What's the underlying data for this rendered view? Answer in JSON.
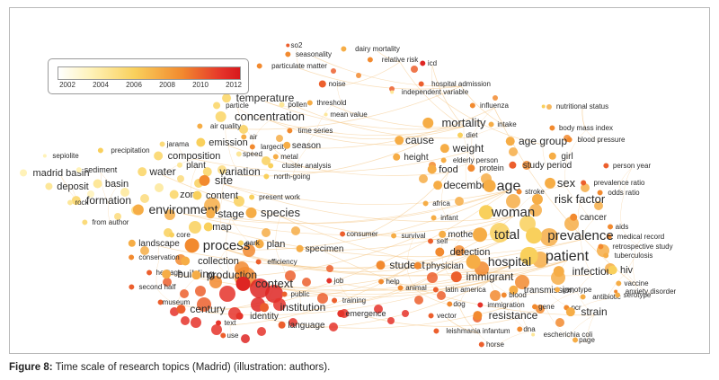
{
  "caption": {
    "label": "Figure 8:",
    "text": "Time scale of research topics (Madrid) (illustration: authors)."
  },
  "legend": {
    "ticks": [
      "2002",
      "2004",
      "2006",
      "2008",
      "2010",
      "2012"
    ],
    "value_range": [
      2001,
      2013
    ]
  },
  "colors": {
    "edge": "#f4c27d",
    "scale": [
      "#ffffff",
      "#fff2b8",
      "#f9d05c",
      "#f28a2f",
      "#e5332a",
      "#d7191c"
    ]
  },
  "nodes": [
    {
      "label": "so2",
      "year": 2010
    },
    {
      "label": "seasonality",
      "year": 2009
    },
    {
      "label": "particulate matter",
      "year": 2009
    },
    {
      "label": "noise",
      "year": 2010
    },
    {
      "label": "dairy mortality",
      "year": 2008
    },
    {
      "label": "relative risk",
      "year": 2009
    },
    {
      "label": "icd",
      "year": 2012
    },
    {
      "label": "hospital admission",
      "year": 2010
    },
    {
      "label": "independent variable",
      "year": 2005
    },
    {
      "label": "influenza",
      "year": 2009
    },
    {
      "label": "nutritional status",
      "year": 2007
    },
    {
      "label": "temperature",
      "year": 2006
    },
    {
      "label": "particle",
      "year": 2006
    },
    {
      "label": "pollen",
      "year": 2005
    },
    {
      "label": "threshold",
      "year": 2008
    },
    {
      "label": "mean value",
      "year": 2005
    },
    {
      "label": "concentration",
      "year": 2006
    },
    {
      "label": "air quality",
      "year": 2008
    },
    {
      "label": "time series",
      "year": 2009
    },
    {
      "label": "emission",
      "year": 2007
    },
    {
      "label": "air",
      "year": 2008
    },
    {
      "label": "largecity",
      "year": 2009
    },
    {
      "label": "season",
      "year": 2008
    },
    {
      "label": "jarama",
      "year": 2006
    },
    {
      "label": "speed",
      "year": 2005
    },
    {
      "label": "metal",
      "year": 2008
    },
    {
      "label": "composition",
      "year": 2006
    },
    {
      "label": "cluster analysis",
      "year": 2007
    },
    {
      "label": "north-going",
      "year": 2007
    },
    {
      "label": "plant",
      "year": 2005
    },
    {
      "label": "precipitation",
      "year": 2007
    },
    {
      "label": "sepiolite",
      "year": 2004
    },
    {
      "label": "water",
      "year": 2006
    },
    {
      "label": "variation",
      "year": 2006
    },
    {
      "label": "madrid basin",
      "year": 2004
    },
    {
      "label": "sediment",
      "year": 2004
    },
    {
      "label": "deposit",
      "year": 2005
    },
    {
      "label": "basin",
      "year": 2005
    },
    {
      "label": "site",
      "year": 2009
    },
    {
      "label": "formation",
      "year": 2006
    },
    {
      "label": "rock",
      "year": 2005
    },
    {
      "label": "zone",
      "year": 2006
    },
    {
      "label": "content",
      "year": 2007
    },
    {
      "label": "present work",
      "year": 2007
    },
    {
      "label": "environment",
      "year": 2008
    },
    {
      "label": "stage",
      "year": 2008
    },
    {
      "label": "species",
      "year": 2008
    },
    {
      "label": "from author",
      "year": 2006
    },
    {
      "label": "map",
      "year": 2007
    },
    {
      "label": "core",
      "year": 2007
    },
    {
      "label": "landscape",
      "year": 2008
    },
    {
      "label": "process",
      "year": 2009
    },
    {
      "label": "plan",
      "year": 2008
    },
    {
      "label": "park",
      "year": 2007
    },
    {
      "label": "specimen",
      "year": 2008
    },
    {
      "label": "consumer",
      "year": 2010
    },
    {
      "label": "conservation",
      "year": 2009
    },
    {
      "label": "collection",
      "year": 2008
    },
    {
      "label": "efficiency",
      "year": 2010
    },
    {
      "label": "heritage",
      "year": 2010
    },
    {
      "label": "building",
      "year": 2008
    },
    {
      "label": "production",
      "year": 2008
    },
    {
      "label": "second half",
      "year": 2010
    },
    {
      "label": "context",
      "year": 2012
    },
    {
      "label": "public",
      "year": 2010
    },
    {
      "label": "job",
      "year": 2011
    },
    {
      "label": "museum",
      "year": 2010
    },
    {
      "label": "century",
      "year": 2010
    },
    {
      "label": "institution",
      "year": 2010
    },
    {
      "label": "training",
      "year": 2010
    },
    {
      "label": "text",
      "year": 2011
    },
    {
      "label": "identity",
      "year": 2011
    },
    {
      "label": "emergence",
      "year": 2011
    },
    {
      "label": "language",
      "year": 2010
    },
    {
      "label": "use",
      "year": 2010
    },
    {
      "label": "cause",
      "year": 2008
    },
    {
      "label": "mortality",
      "year": 2008
    },
    {
      "label": "intake",
      "year": 2008
    },
    {
      "label": "body mass index",
      "year": 2009
    },
    {
      "label": "diet",
      "year": 2007
    },
    {
      "label": "weight",
      "year": 2008
    },
    {
      "label": "age group",
      "year": 2008
    },
    {
      "label": "blood pressure",
      "year": 2009
    },
    {
      "label": "elderly person",
      "year": 2008
    },
    {
      "label": "height",
      "year": 2008
    },
    {
      "label": "food",
      "year": 2008
    },
    {
      "label": "protein",
      "year": 2009
    },
    {
      "label": "study period",
      "year": 2010
    },
    {
      "label": "girl",
      "year": 2008
    },
    {
      "label": "person year",
      "year": 2010
    },
    {
      "label": "december",
      "year": 2008
    },
    {
      "label": "age",
      "year": 2008
    },
    {
      "label": "sex",
      "year": 2008
    },
    {
      "label": "prevalence ratio",
      "year": 2010
    },
    {
      "label": "stroke",
      "year": 2009
    },
    {
      "label": "odds ratio",
      "year": 2009
    },
    {
      "label": "risk factor",
      "year": 2008
    },
    {
      "label": "africa",
      "year": 2008
    },
    {
      "label": "woman",
      "year": 2007
    },
    {
      "label": "infant",
      "year": 2008
    },
    {
      "label": "cancer",
      "year": 2009
    },
    {
      "label": "aids",
      "year": 2009
    },
    {
      "label": "medical record",
      "year": 2009
    },
    {
      "label": "survival",
      "year": 2008
    },
    {
      "label": "mother",
      "year": 2008
    },
    {
      "label": "total",
      "year": 2008
    },
    {
      "label": "prevalence",
      "year": 2007
    },
    {
      "label": "retrospective study",
      "year": 2009
    },
    {
      "label": "self",
      "year": 2010
    },
    {
      "label": "patient",
      "year": 2007
    },
    {
      "label": "tuberculosis",
      "year": 2008
    },
    {
      "label": "detection",
      "year": 2009
    },
    {
      "label": "hospital",
      "year": 2008
    },
    {
      "label": "student",
      "year": 2009
    },
    {
      "label": "physician",
      "year": 2009
    },
    {
      "label": "immigrant",
      "year": 2010
    },
    {
      "label": "infection",
      "year": 2008
    },
    {
      "label": "hiv",
      "year": 2007
    },
    {
      "label": "vaccine",
      "year": 2008
    },
    {
      "label": "anxiety disorder",
      "year": 2009
    },
    {
      "label": "help",
      "year": 2009
    },
    {
      "label": "animal",
      "year": 2009
    },
    {
      "label": "latin america",
      "year": 2010
    },
    {
      "label": "transmission",
      "year": 2008
    },
    {
      "label": "genotype",
      "year": 2008
    },
    {
      "label": "antibiotic",
      "year": 2008
    },
    {
      "label": "serotype",
      "year": 2008
    },
    {
      "label": "blood",
      "year": 2009
    },
    {
      "label": "dog",
      "year": 2009
    },
    {
      "label": "immigration",
      "year": 2011
    },
    {
      "label": "gene",
      "year": 2009
    },
    {
      "label": "pcr",
      "year": 2009
    },
    {
      "label": "strain",
      "year": 2008
    },
    {
      "label": "vector",
      "year": 2010
    },
    {
      "label": "resistance",
      "year": 2009
    },
    {
      "label": "dna",
      "year": 2009
    },
    {
      "label": "escherichia coli",
      "year": 2005
    },
    {
      "label": "leishmania infantum",
      "year": 2010
    },
    {
      "label": "page",
      "year": 2008
    },
    {
      "label": "horse",
      "year": 2010
    }
  ]
}
